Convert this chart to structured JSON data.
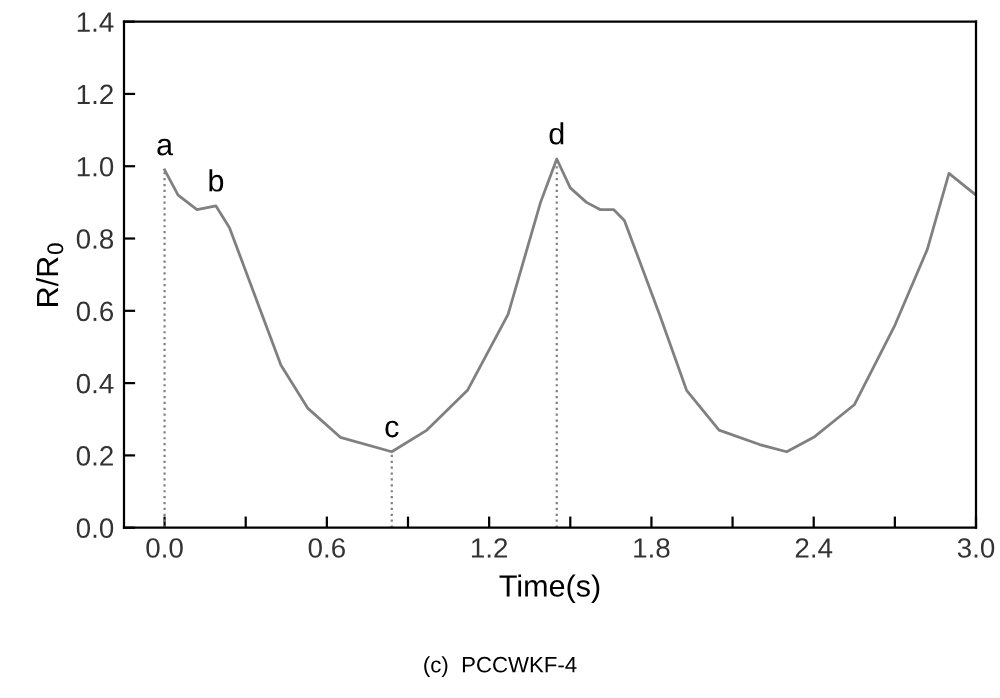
{
  "chart_data": {
    "type": "line",
    "xlabel": "Time(s)",
    "ylabel": "R/R$_{0}$",
    "x": [
      0.0,
      0.05,
      0.12,
      0.19,
      0.24,
      0.33,
      0.43,
      0.53,
      0.65,
      0.84,
      0.97,
      1.12,
      1.27,
      1.39,
      1.45,
      1.5,
      1.56,
      1.61,
      1.66,
      1.7,
      1.83,
      1.93,
      2.05,
      2.2,
      2.3,
      2.4,
      2.55,
      2.7,
      2.82,
      2.9,
      3.0
    ],
    "series": [
      {
        "color": "#808080",
        "values": [
          0.99,
          0.92,
          0.88,
          0.89,
          0.83,
          0.65,
          0.45,
          0.33,
          0.25,
          0.21,
          0.27,
          0.38,
          0.59,
          0.9,
          1.02,
          0.94,
          0.9,
          0.88,
          0.88,
          0.85,
          0.59,
          0.38,
          0.27,
          0.23,
          0.21,
          0.25,
          0.34,
          0.56,
          0.77,
          0.98,
          0.92
        ]
      }
    ],
    "xlim": [
      -0.15,
      3.0
    ],
    "ylim": [
      0.0,
      1.4
    ],
    "xticks": [
      {
        "value": 0.0,
        "label": "0.0"
      },
      {
        "value": 0.3,
        "label": null
      },
      {
        "value": 0.6,
        "label": "0.6"
      },
      {
        "value": 0.9,
        "label": null
      },
      {
        "value": 1.2,
        "label": "1.2"
      },
      {
        "value": 1.5,
        "label": null
      },
      {
        "value": 1.8,
        "label": "1.8"
      },
      {
        "value": 2.1,
        "label": null
      },
      {
        "value": 2.4,
        "label": "2.4"
      },
      {
        "value": 2.7,
        "label": null
      },
      {
        "value": 3.0,
        "label": "3.0"
      }
    ],
    "yticks": [
      {
        "value": 0.0,
        "label": "0.0"
      },
      {
        "value": 0.2,
        "label": "0.2"
      },
      {
        "value": 0.4,
        "label": "0.4"
      },
      {
        "value": 0.6,
        "label": "0.6"
      },
      {
        "value": 0.8,
        "label": "0.8"
      },
      {
        "value": 1.0,
        "label": "1.0"
      },
      {
        "value": 1.2,
        "label": "1.2"
      },
      {
        "value": 1.4,
        "label": "1.4"
      }
    ],
    "ref_lines": [
      {
        "axis": "x",
        "value": 0.0,
        "color": "#808080",
        "line_style": "dotted"
      },
      {
        "axis": "x",
        "value": 0.84,
        "color": "#808080",
        "line_style": "dotted"
      },
      {
        "axis": "x",
        "value": 1.45,
        "color": "#808080",
        "line_style": "dotted"
      }
    ],
    "annotations": [
      {
        "text": "a",
        "x": 0.0,
        "y": 0.99
      },
      {
        "text": "b",
        "x": 0.19,
        "y": 0.89
      },
      {
        "text": "c",
        "x": 0.84,
        "y": 0.21
      },
      {
        "text": "d",
        "x": 1.45,
        "y": 1.02
      },
      "(c)  PCCWKF-4"
    ],
    "grid": false,
    "legend": false,
    "marker": "none",
    "line_style": "solid"
  }
}
